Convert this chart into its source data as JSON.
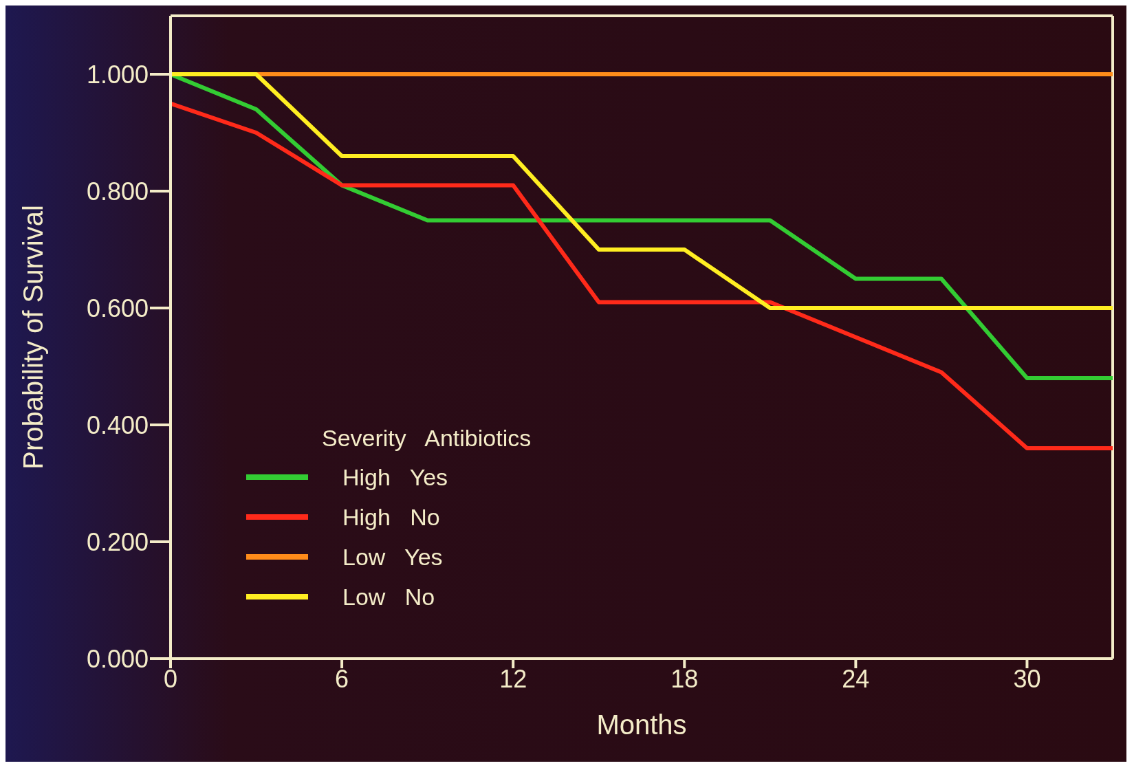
{
  "chart_data": {
    "type": "line",
    "xlabel": "Months",
    "ylabel": "Probability of Survival",
    "legend_title": "Severity   Antibiotics",
    "legend": "bottom left",
    "marker": "none",
    "line_style": "solid",
    "xlim": [
      0,
      33
    ],
    "xticks": [
      0,
      6,
      12,
      18,
      24,
      30
    ],
    "ylim": [
      0,
      1.1
    ],
    "yticks": [
      {
        "value": 0,
        "label": "0.000"
      },
      {
        "value": 0.2,
        "label": "0.200"
      },
      {
        "value": 0.4,
        "label": "0.400"
      },
      {
        "value": 0.6,
        "label": "0.600"
      },
      {
        "value": 0.8,
        "label": "0.800"
      },
      {
        "value": 1,
        "label": "1.000"
      }
    ],
    "series": [
      {
        "name": "High   Yes",
        "color": "#33cc33",
        "x": [
          0,
          3,
          6,
          9,
          21,
          24,
          27,
          30,
          33
        ],
        "values": [
          1,
          0.94,
          0.81,
          0.75,
          0.75,
          0.65,
          0.65,
          0.48,
          0.48
        ]
      },
      {
        "name": "High   No",
        "color": "#ff2a1a",
        "x": [
          0,
          3,
          6,
          12,
          15,
          21,
          24,
          27,
          30,
          33
        ],
        "values": [
          0.95,
          0.9,
          0.81,
          0.81,
          0.61,
          0.61,
          0.55,
          0.49,
          0.36,
          0.36
        ]
      },
      {
        "name": "Low   Yes",
        "color": "#ff8c1a",
        "x": [
          0,
          33
        ],
        "values": [
          1,
          1
        ]
      },
      {
        "name": "Low   No",
        "color": "#ffee22",
        "x": [
          0,
          3,
          6,
          12,
          15,
          18,
          21,
          33
        ],
        "values": [
          1,
          1,
          0.86,
          0.86,
          0.7,
          0.7,
          0.6,
          0.6
        ]
      }
    ]
  }
}
